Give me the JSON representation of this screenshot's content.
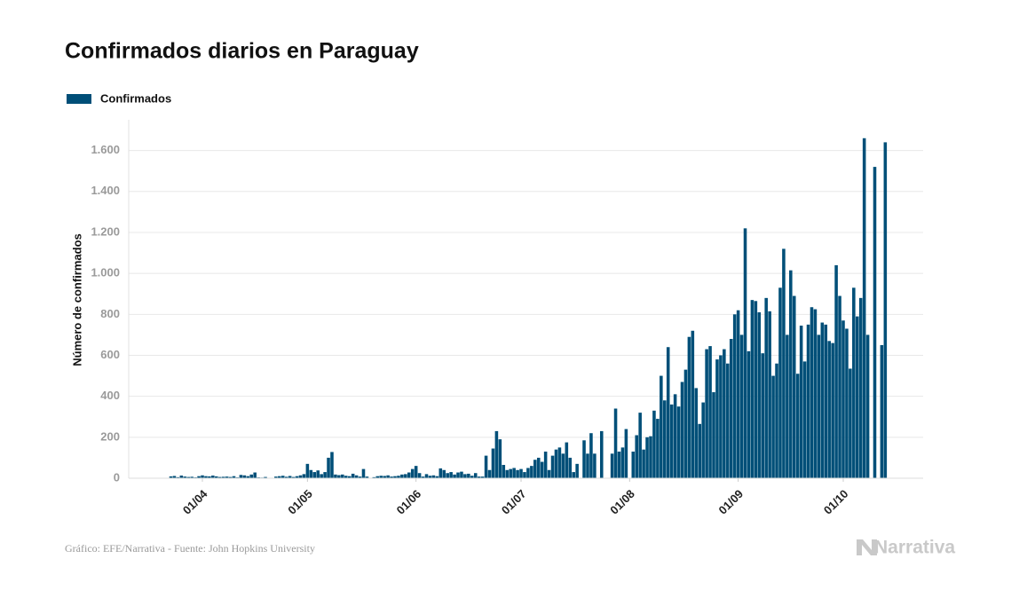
{
  "chart_data": {
    "type": "bar",
    "title": "Confirmados diarios en Paraguay",
    "ylabel": "Número de confirmados",
    "source": "Gráfico: EFE/Narrativa - Fuente: John Hopkins University",
    "logo": "Narrativa",
    "categories": [
      null,
      null,
      null,
      null,
      null,
      null,
      null,
      null,
      null,
      null,
      null,
      null,
      "01/04",
      null,
      null,
      null,
      null,
      null,
      null,
      null,
      null,
      null,
      null,
      null,
      null,
      null,
      null,
      null,
      null,
      null,
      null,
      null,
      null,
      null,
      null,
      null,
      null,
      null,
      null,
      null,
      null,
      null,
      "01/05",
      null,
      null,
      null,
      null,
      null,
      null,
      null,
      null,
      null,
      null,
      null,
      null,
      null,
      null,
      null,
      null,
      null,
      null,
      null,
      null,
      null,
      null,
      null,
      null,
      null,
      null,
      null,
      null,
      null,
      null,
      "01/06",
      null,
      null,
      null,
      null,
      null,
      null,
      null,
      null,
      null,
      null,
      null,
      null,
      null,
      null,
      null,
      null,
      null,
      null,
      null,
      null,
      null,
      null,
      null,
      null,
      null,
      null,
      null,
      null,
      null,
      "01/07",
      null,
      null,
      null,
      null,
      null,
      null,
      null,
      null,
      null,
      null,
      null,
      null,
      null,
      null,
      null,
      null,
      null,
      null,
      null,
      null,
      null,
      null,
      null,
      null,
      null,
      null,
      null,
      null,
      null,
      null,
      "01/08",
      null,
      null,
      null,
      null,
      null,
      null,
      null,
      null,
      null,
      null,
      null,
      null,
      null,
      null,
      null,
      null,
      null,
      null,
      null,
      null,
      null,
      null,
      null,
      null,
      null,
      null,
      null,
      null,
      null,
      null,
      "01/09",
      null,
      null,
      null,
      null,
      null,
      null,
      null,
      null,
      null,
      null,
      null,
      null,
      null,
      null,
      null,
      null,
      null,
      null,
      null,
      null,
      null,
      null,
      null,
      null,
      null,
      null,
      null,
      null,
      null,
      "01/10",
      null,
      null,
      null,
      null,
      null,
      null,
      null,
      null,
      null,
      null,
      null,
      null
    ],
    "series": [
      {
        "name": "Confirmados",
        "color": "#004f78",
        "values": [
          0,
          2,
          0,
          9,
          11,
          5,
          13,
          8,
          6,
          7,
          4,
          10,
          14,
          10,
          9,
          13,
          9,
          6,
          7,
          8,
          6,
          10,
          4,
          16,
          14,
          10,
          18,
          28,
          4,
          3,
          6,
          2,
          0,
          8,
          10,
          12,
          7,
          11,
          6,
          10,
          14,
          20,
          70,
          40,
          30,
          38,
          20,
          30,
          100,
          128,
          18,
          15,
          18,
          12,
          10,
          22,
          14,
          8,
          45,
          8,
          2,
          5,
          10,
          12,
          11,
          14,
          8,
          10,
          12,
          18,
          20,
          28,
          45,
          60,
          25,
          8,
          20,
          12,
          14,
          10,
          48,
          40,
          25,
          30,
          18,
          28,
          32,
          20,
          22,
          12,
          25,
          8,
          8,
          110,
          40,
          145,
          230,
          190,
          65,
          40,
          45,
          50,
          40,
          45,
          30,
          50,
          60,
          90,
          100,
          80,
          130,
          40,
          110,
          140,
          150,
          120,
          175,
          100,
          30,
          70,
          0,
          185,
          120,
          220,
          120,
          0,
          230,
          0,
          0,
          120,
          340,
          130,
          150,
          240,
          0,
          130,
          210,
          320,
          140,
          200,
          205,
          330,
          290,
          500,
          380,
          640,
          360,
          410,
          350,
          470,
          530,
          690,
          720,
          440,
          265,
          370,
          630,
          645,
          420,
          580,
          600,
          630,
          560,
          680,
          800,
          820,
          700,
          1220,
          620,
          870,
          865,
          810,
          610,
          880,
          815,
          500,
          560,
          930,
          1120,
          700,
          1015,
          890,
          510,
          745,
          570,
          750,
          835,
          825,
          700,
          760,
          750,
          670,
          660,
          1040,
          890,
          770,
          730,
          535,
          930,
          790,
          880,
          1660,
          700,
          0,
          1520,
          0,
          650,
          1640
        ]
      }
    ],
    "ylim": [
      0,
      1750
    ],
    "yticks": [
      0,
      200,
      400,
      600,
      800,
      {
        "value": 1000,
        "label": "1.000"
      },
      {
        "value": 1200,
        "label": "1.200"
      },
      {
        "value": 1400,
        "label": "1.400"
      },
      {
        "value": 1600,
        "label": "1.600"
      }
    ],
    "grid": true
  }
}
